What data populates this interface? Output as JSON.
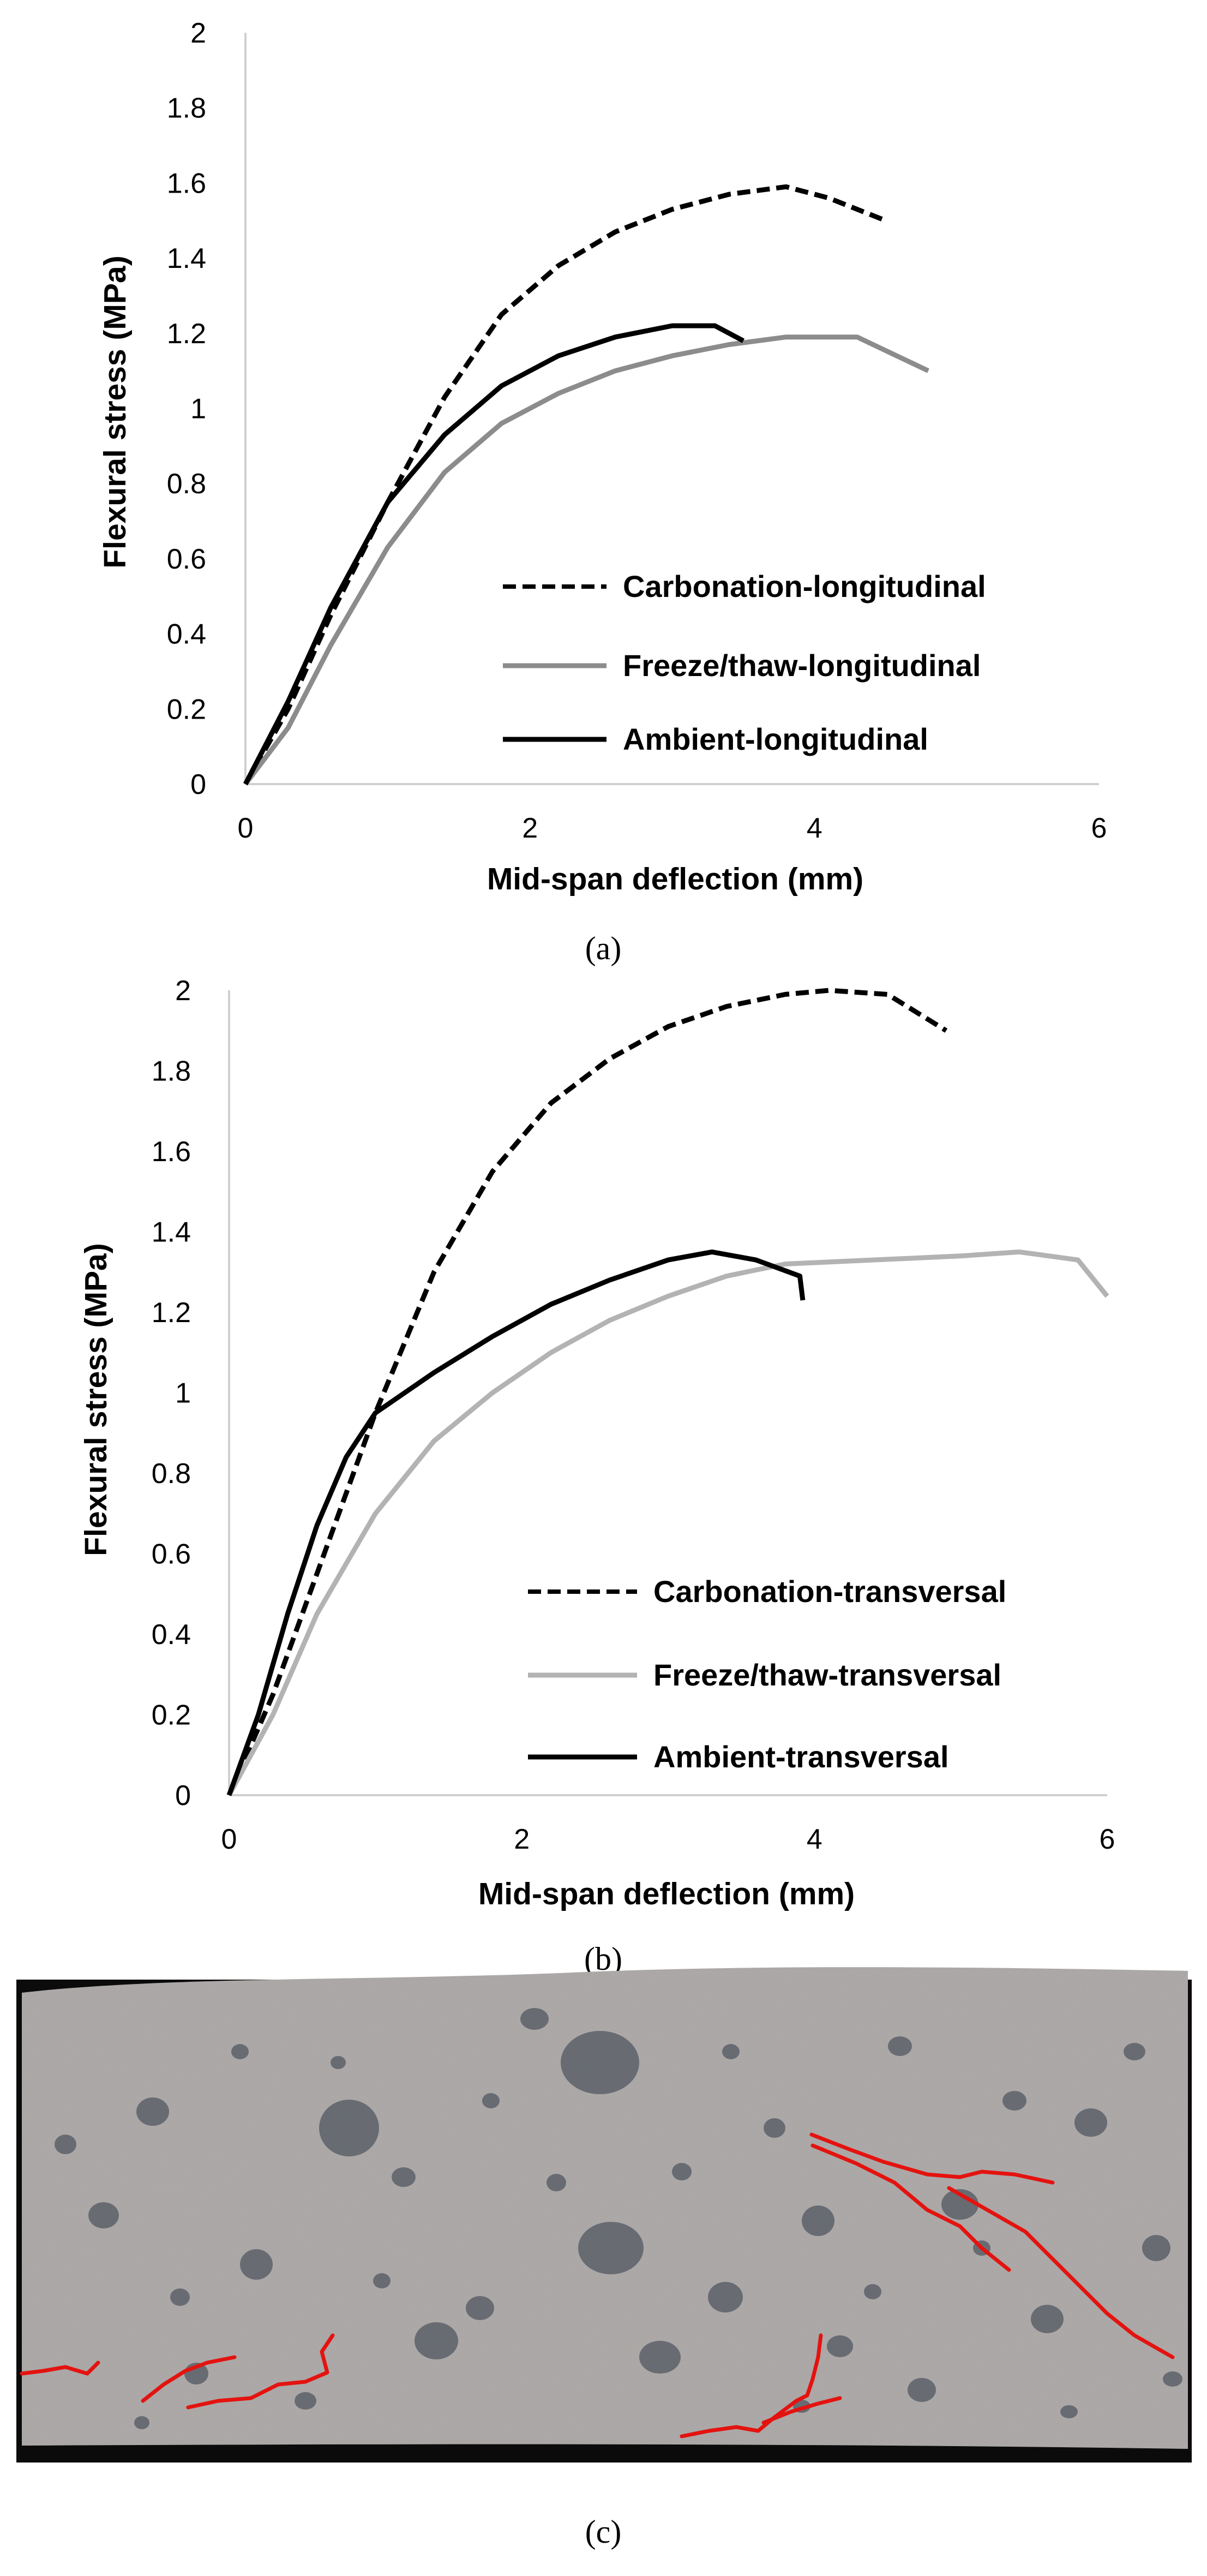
{
  "chart_data": [
    {
      "type": "line",
      "panel": "a",
      "caption": "(a)",
      "xlabel": "Mid-span deflection (mm)",
      "ylabel": "Flexural stress (MPa)",
      "xlim": [
        0,
        6
      ],
      "ylim": [
        0,
        2
      ],
      "xticks": [
        0,
        2,
        4,
        6
      ],
      "yticks": [
        0,
        0.2,
        0.4,
        0.6,
        0.8,
        1,
        1.2,
        1.4,
        1.6,
        1.8,
        2
      ],
      "xtick_labels": [
        "0",
        "2",
        "4",
        "6"
      ],
      "ytick_labels": [
        "0",
        "0.2",
        "0.4",
        "0.6",
        "0.8",
        "1",
        "1.2",
        "1.4",
        "1.6",
        "1.8",
        "2"
      ],
      "legend_position": "lower-right",
      "series": [
        {
          "name": "Carbonation-longitudinal",
          "style": "dashed",
          "color": "#000000",
          "x": [
            0,
            0.3,
            0.6,
            1.0,
            1.4,
            1.8,
            2.2,
            2.6,
            3.0,
            3.4,
            3.8,
            4.1,
            4.5
          ],
          "y": [
            0,
            0.2,
            0.45,
            0.75,
            1.03,
            1.25,
            1.38,
            1.47,
            1.53,
            1.57,
            1.59,
            1.56,
            1.5
          ]
        },
        {
          "name": "Freeze/thaw-longitudinal",
          "style": "solid",
          "color": "#8c8c8c",
          "x": [
            0,
            0.3,
            0.6,
            1.0,
            1.4,
            1.8,
            2.2,
            2.6,
            3.0,
            3.4,
            3.8,
            4.3,
            4.8
          ],
          "y": [
            0,
            0.15,
            0.37,
            0.63,
            0.83,
            0.96,
            1.04,
            1.1,
            1.14,
            1.17,
            1.19,
            1.19,
            1.1
          ]
        },
        {
          "name": "Ambient-longitudinal",
          "style": "solid",
          "color": "#000000",
          "x": [
            0,
            0.3,
            0.6,
            1.0,
            1.4,
            1.8,
            2.2,
            2.6,
            3.0,
            3.3,
            3.5
          ],
          "y": [
            0,
            0.22,
            0.47,
            0.75,
            0.93,
            1.06,
            1.14,
            1.19,
            1.22,
            1.22,
            1.18
          ]
        }
      ]
    },
    {
      "type": "line",
      "panel": "b",
      "caption": "(b)",
      "xlabel": "Mid-span deflection (mm)",
      "ylabel": "Flexural stress (MPa)",
      "xlim": [
        0,
        6
      ],
      "ylim": [
        0,
        2
      ],
      "xticks": [
        0,
        2,
        4,
        6
      ],
      "yticks": [
        0,
        0.2,
        0.4,
        0.6,
        0.8,
        1,
        1.2,
        1.4,
        1.6,
        1.8,
        2
      ],
      "xtick_labels": [
        "0",
        "2",
        "4",
        "6"
      ],
      "ytick_labels": [
        "0",
        "0.2",
        "0.4",
        "0.6",
        "0.8",
        "1",
        "1.2",
        "1.4",
        "1.6",
        "1.8",
        "2"
      ],
      "legend_position": "lower-right",
      "series": [
        {
          "name": "Carbonation-transversal",
          "style": "dashed",
          "color": "#000000",
          "x": [
            0,
            0.3,
            0.6,
            1.0,
            1.4,
            1.8,
            2.2,
            2.6,
            3.0,
            3.4,
            3.8,
            4.1,
            4.5,
            4.9
          ],
          "y": [
            0,
            0.25,
            0.55,
            0.95,
            1.3,
            1.55,
            1.72,
            1.83,
            1.91,
            1.96,
            1.99,
            2.0,
            1.99,
            1.9
          ]
        },
        {
          "name": "Freeze/thaw-transversal",
          "style": "solid",
          "color": "#b3b3b3",
          "x": [
            0,
            0.3,
            0.6,
            1.0,
            1.4,
            1.8,
            2.2,
            2.6,
            3.0,
            3.4,
            3.8,
            4.4,
            5.0,
            5.4,
            5.8,
            6.0
          ],
          "y": [
            0,
            0.2,
            0.45,
            0.7,
            0.88,
            1.0,
            1.1,
            1.18,
            1.24,
            1.29,
            1.32,
            1.33,
            1.34,
            1.35,
            1.33,
            1.24
          ]
        },
        {
          "name": "Ambient-transversal",
          "style": "solid",
          "color": "#000000",
          "x": [
            0,
            0.2,
            0.4,
            0.6,
            0.8,
            1.0,
            1.4,
            1.8,
            2.2,
            2.6,
            3.0,
            3.3,
            3.6,
            3.9,
            3.92
          ],
          "y": [
            0,
            0.2,
            0.45,
            0.67,
            0.84,
            0.95,
            1.05,
            1.14,
            1.22,
            1.28,
            1.33,
            1.35,
            1.33,
            1.29,
            1.23
          ]
        }
      ]
    }
  ],
  "photo": {
    "caption": "(c)",
    "colors": {
      "background": "#0b0b0b",
      "specimen": "#a8a4a2",
      "aggregate": "#5c6068",
      "crack": "#e4130f"
    }
  }
}
